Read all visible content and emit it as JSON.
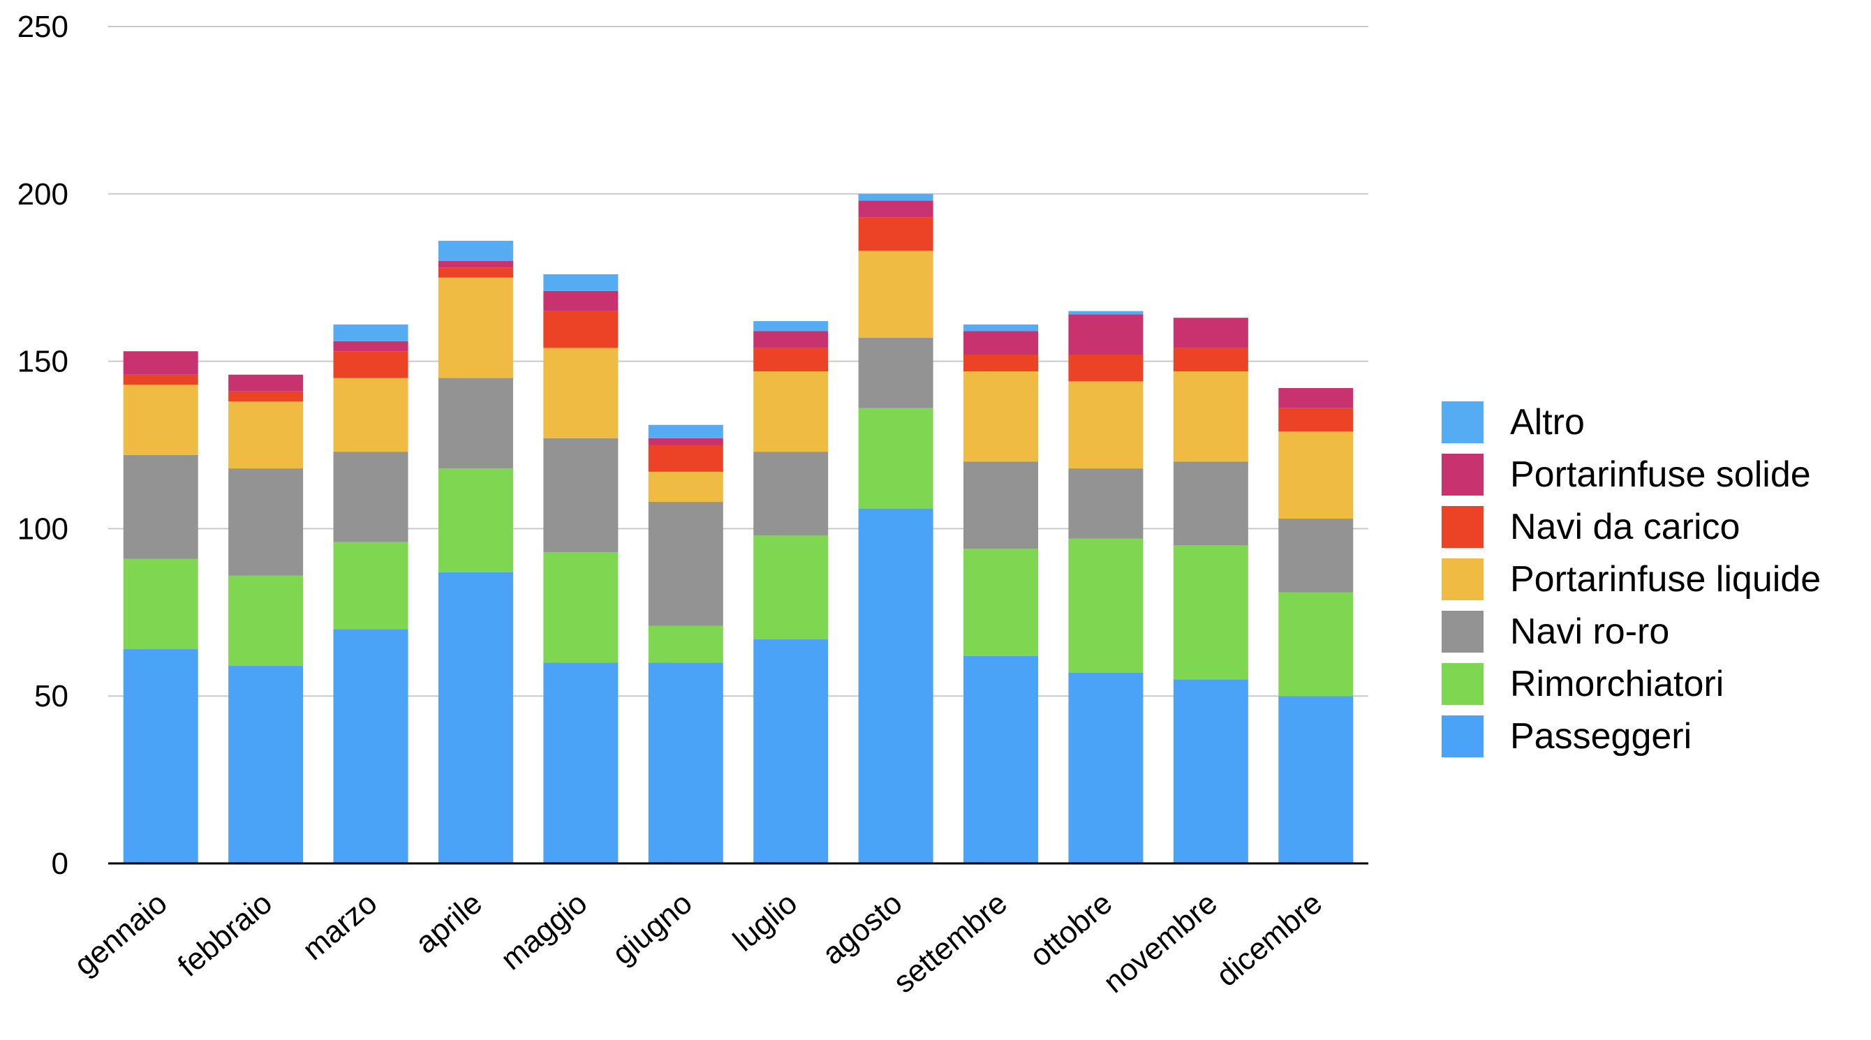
{
  "chart_data": {
    "type": "bar",
    "stacked": true,
    "title": "",
    "xlabel": "",
    "ylabel": "",
    "ylim": [
      0,
      250
    ],
    "yticks": [
      0,
      50,
      100,
      150,
      200,
      250
    ],
    "grid": true,
    "legend_position": "right",
    "categories": [
      "gennaio",
      "febbraio",
      "marzo",
      "aprile",
      "maggio",
      "giugno",
      "luglio",
      "agosto",
      "settembre",
      "ottobre",
      "novembre",
      "dicembre"
    ],
    "series": [
      {
        "name": "Passeggeri",
        "color": "#4aa3f7",
        "values": [
          64,
          59,
          70,
          87,
          60,
          60,
          67,
          106,
          62,
          57,
          55,
          50
        ]
      },
      {
        "name": "Rimorchiatori",
        "color": "#7fd651",
        "values": [
          27,
          27,
          26,
          31,
          33,
          11,
          31,
          30,
          32,
          40,
          40,
          31
        ]
      },
      {
        "name": "Navi ro-ro",
        "color": "#939393",
        "values": [
          31,
          32,
          27,
          27,
          34,
          37,
          25,
          21,
          26,
          21,
          25,
          22
        ]
      },
      {
        "name": "Portarinfuse liquide",
        "color": "#f0bb42",
        "values": [
          21,
          20,
          22,
          30,
          27,
          9,
          24,
          26,
          27,
          26,
          27,
          26
        ]
      },
      {
        "name": "Navi da carico",
        "color": "#ec4226",
        "values": [
          3,
          3,
          8,
          3,
          11,
          8,
          7,
          10,
          5,
          8,
          7,
          7
        ]
      },
      {
        "name": "Portarinfuse solide",
        "color": "#c8336f",
        "values": [
          7,
          5,
          3,
          2,
          6,
          2,
          5,
          5,
          7,
          12,
          9,
          6
        ]
      },
      {
        "name": "Altro",
        "color": "#56acf2",
        "values": [
          0,
          0,
          5,
          6,
          5,
          4,
          3,
          2,
          2,
          1,
          0,
          0
        ]
      }
    ]
  }
}
